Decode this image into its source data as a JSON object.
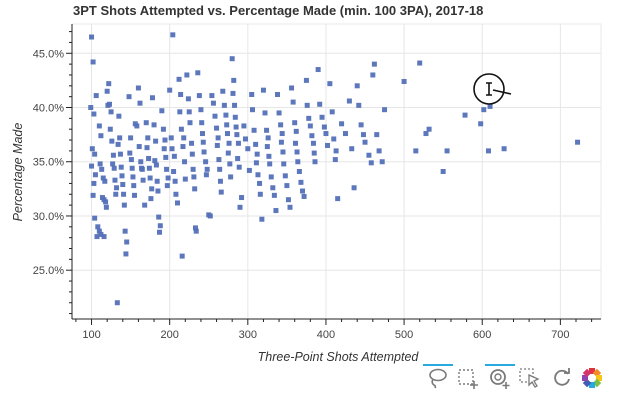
{
  "chart_data": {
    "type": "scatter",
    "title": "3PT Shots Attempted vs. Percentage Made (min. 100 3PA), 2017-18",
    "xlabel": "Three-Point Shots Attempted",
    "ylabel": "Percentage Made",
    "xlim": [
      75,
      752
    ],
    "ylim": [
      0.205,
      0.477
    ],
    "xticks": [
      100,
      200,
      300,
      400,
      500,
      600,
      700
    ],
    "yticks": [
      0.25,
      0.3,
      0.35,
      0.4,
      0.45
    ],
    "xtick_labels": [
      "100",
      "200",
      "300",
      "400",
      "500",
      "600",
      "700"
    ],
    "ytick_labels": [
      "25.0%",
      "30.0%",
      "35.0%",
      "40.0%",
      "45.0%"
    ],
    "marker_color": "#5470b8",
    "grid": true,
    "points": [
      [
        100,
        0.465
      ],
      [
        102,
        0.442
      ],
      [
        99,
        0.4
      ],
      [
        103,
        0.394
      ],
      [
        101,
        0.362
      ],
      [
        104,
        0.357
      ],
      [
        100,
        0.346
      ],
      [
        105,
        0.338
      ],
      [
        103,
        0.33
      ],
      [
        102,
        0.319
      ],
      [
        104,
        0.298
      ],
      [
        108,
        0.29
      ],
      [
        110,
        0.286
      ],
      [
        112,
        0.283
      ],
      [
        107,
        0.281
      ],
      [
        106,
        0.411
      ],
      [
        110,
        0.383
      ],
      [
        112,
        0.374
      ],
      [
        111,
        0.348
      ],
      [
        113,
        0.343
      ],
      [
        115,
        0.335
      ],
      [
        117,
        0.332
      ],
      [
        114,
        0.317
      ],
      [
        116,
        0.315
      ],
      [
        118,
        0.313
      ],
      [
        119,
        0.308
      ],
      [
        116,
        0.281
      ],
      [
        120,
        0.415
      ],
      [
        122,
        0.422
      ],
      [
        121,
        0.402
      ],
      [
        123,
        0.403
      ],
      [
        125,
        0.396
      ],
      [
        124,
        0.38
      ],
      [
        126,
        0.369
      ],
      [
        128,
        0.356
      ],
      [
        127,
        0.348
      ],
      [
        129,
        0.344
      ],
      [
        130,
        0.333
      ],
      [
        132,
        0.326
      ],
      [
        131,
        0.32
      ],
      [
        133,
        0.22
      ],
      [
        135,
        0.392
      ],
      [
        136,
        0.372
      ],
      [
        134,
        0.366
      ],
      [
        137,
        0.357
      ],
      [
        138,
        0.345
      ],
      [
        139,
        0.337
      ],
      [
        140,
        0.329
      ],
      [
        141,
        0.32
      ],
      [
        142,
        0.31
      ],
      [
        143,
        0.286
      ],
      [
        145,
        0.276
      ],
      [
        144,
        0.265
      ],
      [
        148,
        0.41
      ],
      [
        150,
        0.372
      ],
      [
        149,
        0.358
      ],
      [
        151,
        0.352
      ],
      [
        152,
        0.344
      ],
      [
        153,
        0.336
      ],
      [
        154,
        0.328
      ],
      [
        155,
        0.319
      ],
      [
        156,
        0.385
      ],
      [
        158,
        0.383
      ],
      [
        160,
        0.418
      ],
      [
        162,
        0.404
      ],
      [
        161,
        0.364
      ],
      [
        163,
        0.35
      ],
      [
        164,
        0.344
      ],
      [
        165,
        0.343
      ],
      [
        166,
        0.333
      ],
      [
        168,
        0.31
      ],
      [
        170,
        0.386
      ],
      [
        172,
        0.372
      ],
      [
        171,
        0.363
      ],
      [
        173,
        0.353
      ],
      [
        174,
        0.344
      ],
      [
        175,
        0.335
      ],
      [
        177,
        0.325
      ],
      [
        176,
        0.316
      ],
      [
        178,
        0.409
      ],
      [
        180,
        0.384
      ],
      [
        182,
        0.369
      ],
      [
        181,
        0.351
      ],
      [
        183,
        0.347
      ],
      [
        184,
        0.332
      ],
      [
        185,
        0.323
      ],
      [
        186,
        0.299
      ],
      [
        188,
        0.291
      ],
      [
        187,
        0.285
      ],
      [
        190,
        0.397
      ],
      [
        192,
        0.38
      ],
      [
        194,
        0.37
      ],
      [
        193,
        0.362
      ],
      [
        195,
        0.354
      ],
      [
        196,
        0.343
      ],
      [
        198,
        0.335
      ],
      [
        197,
        0.328
      ],
      [
        200,
        0.416
      ],
      [
        202,
        0.372
      ],
      [
        203,
        0.362
      ],
      [
        204,
        0.467
      ],
      [
        206,
        0.355
      ],
      [
        205,
        0.341
      ],
      [
        207,
        0.332
      ],
      [
        208,
        0.32
      ],
      [
        210,
        0.312
      ],
      [
        212,
        0.426
      ],
      [
        214,
        0.412
      ],
      [
        213,
        0.396
      ],
      [
        215,
        0.38
      ],
      [
        216,
        0.263
      ],
      [
        218,
        0.372
      ],
      [
        217,
        0.364
      ],
      [
        219,
        0.35
      ],
      [
        220,
        0.334
      ],
      [
        222,
        0.43
      ],
      [
        224,
        0.408
      ],
      [
        225,
        0.396
      ],
      [
        226,
        0.386
      ],
      [
        228,
        0.367
      ],
      [
        229,
        0.357
      ],
      [
        230,
        0.343
      ],
      [
        231,
        0.336
      ],
      [
        232,
        0.325
      ],
      [
        233,
        0.289
      ],
      [
        234,
        0.286
      ],
      [
        236,
        0.432
      ],
      [
        238,
        0.411
      ],
      [
        240,
        0.398
      ],
      [
        241,
        0.386
      ],
      [
        242,
        0.376
      ],
      [
        243,
        0.368
      ],
      [
        244,
        0.359
      ],
      [
        246,
        0.35
      ],
      [
        248,
        0.343
      ],
      [
        247,
        0.338
      ],
      [
        250,
        0.301
      ],
      [
        252,
        0.3
      ],
      [
        254,
        0.411
      ],
      [
        256,
        0.404
      ],
      [
        258,
        0.392
      ],
      [
        260,
        0.381
      ],
      [
        262,
        0.372
      ],
      [
        261,
        0.365
      ],
      [
        263,
        0.352
      ],
      [
        264,
        0.343
      ],
      [
        265,
        0.332
      ],
      [
        266,
        0.322
      ],
      [
        268,
        0.415
      ],
      [
        270,
        0.402
      ],
      [
        272,
        0.393
      ],
      [
        273,
        0.384
      ],
      [
        274,
        0.376
      ],
      [
        276,
        0.367
      ],
      [
        275,
        0.358
      ],
      [
        277,
        0.348
      ],
      [
        278,
        0.336
      ],
      [
        280,
        0.445
      ],
      [
        282,
        0.425
      ],
      [
        281,
        0.413
      ],
      [
        283,
        0.402
      ],
      [
        284,
        0.391
      ],
      [
        285,
        0.382
      ],
      [
        286,
        0.375
      ],
      [
        288,
        0.367
      ],
      [
        287,
        0.353
      ],
      [
        289,
        0.345
      ],
      [
        290,
        0.308
      ],
      [
        292,
        0.317
      ],
      [
        295,
        0.383
      ],
      [
        297,
        0.371
      ],
      [
        300,
        0.362
      ],
      [
        302,
        0.342
      ],
      [
        305,
        0.412
      ],
      [
        306,
        0.398
      ],
      [
        308,
        0.379
      ],
      [
        310,
        0.366
      ],
      [
        312,
        0.357
      ],
      [
        311,
        0.349
      ],
      [
        313,
        0.338
      ],
      [
        315,
        0.33
      ],
      [
        316,
        0.32
      ],
      [
        318,
        0.297
      ],
      [
        320,
        0.416
      ],
      [
        322,
        0.395
      ],
      [
        324,
        0.379
      ],
      [
        326,
        0.372
      ],
      [
        325,
        0.364
      ],
      [
        327,
        0.355
      ],
      [
        328,
        0.348
      ],
      [
        330,
        0.336
      ],
      [
        332,
        0.326
      ],
      [
        334,
        0.319
      ],
      [
        336,
        0.305
      ],
      [
        338,
        0.412
      ],
      [
        340,
        0.395
      ],
      [
        342,
        0.384
      ],
      [
        344,
        0.376
      ],
      [
        343,
        0.368
      ],
      [
        345,
        0.359
      ],
      [
        346,
        0.348
      ],
      [
        348,
        0.337
      ],
      [
        350,
        0.328
      ],
      [
        352,
        0.315
      ],
      [
        354,
        0.308
      ],
      [
        356,
        0.418
      ],
      [
        358,
        0.405
      ],
      [
        360,
        0.386
      ],
      [
        362,
        0.378
      ],
      [
        361,
        0.367
      ],
      [
        363,
        0.359
      ],
      [
        364,
        0.35
      ],
      [
        366,
        0.341
      ],
      [
        368,
        0.331
      ],
      [
        370,
        0.323
      ],
      [
        372,
        0.318
      ],
      [
        375,
        0.425
      ],
      [
        376,
        0.402
      ],
      [
        378,
        0.39
      ],
      [
        380,
        0.383
      ],
      [
        382,
        0.374
      ],
      [
        384,
        0.367
      ],
      [
        385,
        0.358
      ],
      [
        386,
        0.35
      ],
      [
        390,
        0.435
      ],
      [
        392,
        0.403
      ],
      [
        395,
        0.391
      ],
      [
        398,
        0.382
      ],
      [
        400,
        0.376
      ],
      [
        402,
        0.365
      ],
      [
        405,
        0.422
      ],
      [
        408,
        0.396
      ],
      [
        410,
        0.371
      ],
      [
        413,
        0.36
      ],
      [
        412,
        0.352
      ],
      [
        415,
        0.316
      ],
      [
        420,
        0.385
      ],
      [
        425,
        0.376
      ],
      [
        430,
        0.406
      ],
      [
        433,
        0.362
      ],
      [
        436,
        0.326
      ],
      [
        440,
        0.42
      ],
      [
        442,
        0.402
      ],
      [
        445,
        0.384
      ],
      [
        448,
        0.375
      ],
      [
        450,
        0.368
      ],
      [
        455,
        0.356
      ],
      [
        458,
        0.349
      ],
      [
        460,
        0.43
      ],
      [
        462,
        0.44
      ],
      [
        465,
        0.375
      ],
      [
        468,
        0.36
      ],
      [
        472,
        0.35
      ],
      [
        475,
        0.398
      ],
      [
        500,
        0.424
      ],
      [
        515,
        0.36
      ],
      [
        520,
        0.441
      ],
      [
        528,
        0.376
      ],
      [
        532,
        0.38
      ],
      [
        550,
        0.341
      ],
      [
        555,
        0.36
      ],
      [
        578,
        0.393
      ],
      [
        598,
        0.385
      ],
      [
        602,
        0.398
      ],
      [
        608,
        0.36
      ],
      [
        610,
        0.401
      ],
      [
        628,
        0.362
      ],
      [
        722,
        0.368
      ]
    ]
  },
  "toolbar": {
    "tools": [
      "lasso-select-icon",
      "box-zoom-icon",
      "wheel-zoom-icon",
      "tap-select-icon",
      "reset-icon",
      "bokeh-logo-icon"
    ]
  }
}
